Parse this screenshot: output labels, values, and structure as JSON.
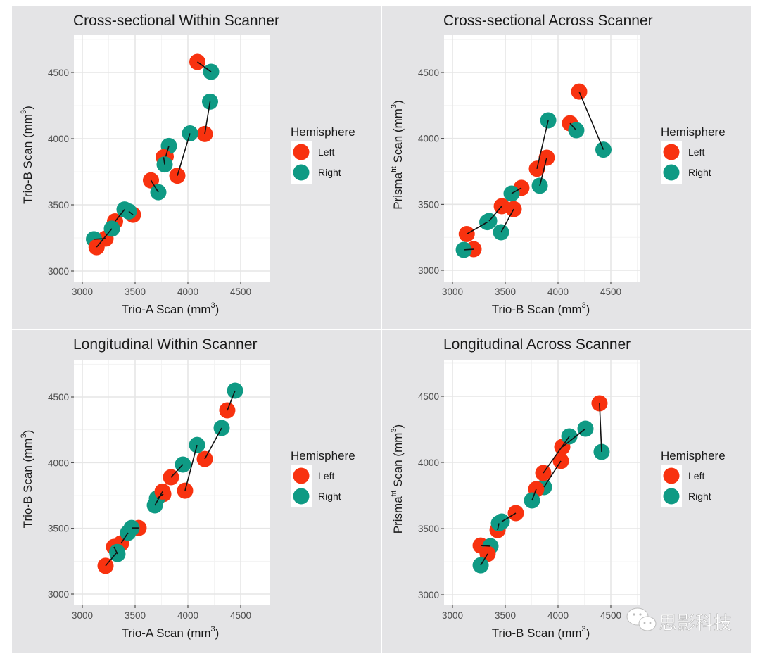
{
  "colors": {
    "left": "#F8320F",
    "right": "#0F9A84",
    "panel_bg": "#E4E4E6",
    "plot_bg": "#FFFFFF",
    "grid": "#E6E6E6",
    "line": "#111111"
  },
  "legend": {
    "title": "Hemisphere",
    "entries": [
      "Left",
      "Right"
    ]
  },
  "watermark": {
    "icon": "wechat-icon",
    "text": "思影科技"
  },
  "chart_data": [
    {
      "type": "scatter",
      "title": "Cross-sectional Within Scanner",
      "xlabel": "Trio-A Scan (mm",
      "xlabel_sup": "3",
      "ylabel": "Trio-B Scan (mm",
      "ylabel_sup": "3",
      "ylabel_prefix_sup": "",
      "xlim": [
        2920,
        4800
      ],
      "ylim": [
        2920,
        4780
      ],
      "xticks": [
        3000,
        3500,
        4000,
        4500
      ],
      "yticks": [
        3000,
        3500,
        4000,
        4500
      ],
      "grid": true,
      "legend_position": "right",
      "pairs": [
        {
          "left": [
            4090,
            4580
          ],
          "right": [
            4220,
            4505
          ]
        },
        {
          "left": [
            4160,
            4035
          ],
          "right": [
            4210,
            4280
          ]
        },
        {
          "left": [
            3900,
            3720
          ],
          "right": [
            4020,
            4040
          ]
        },
        {
          "left": [
            3790,
            3865
          ],
          "right": [
            3820,
            3945
          ]
        },
        {
          "left": [
            3770,
            3860
          ],
          "right": [
            3780,
            3805
          ]
        },
        {
          "left": [
            3650,
            3685
          ],
          "right": [
            3720,
            3595
          ]
        },
        {
          "left": [
            3480,
            3425
          ],
          "right": [
            3440,
            3450
          ]
        },
        {
          "left": [
            3310,
            3375
          ],
          "right": [
            3400,
            3465
          ]
        },
        {
          "left": [
            3220,
            3245
          ],
          "right": [
            3110,
            3240
          ]
        },
        {
          "left": [
            3135,
            3180
          ],
          "right": [
            3280,
            3320
          ]
        }
      ]
    },
    {
      "type": "scatter",
      "title": "Cross-sectional Across Scanner",
      "xlabel": "Trio-B Scan (mm",
      "xlabel_sup": "3",
      "ylabel": "Prisma",
      "ylabel_prefix_sup": "fit",
      "ylabel_rest": " Scan (mm",
      "ylabel_sup": "3",
      "xlim": [
        2920,
        4800
      ],
      "ylim": [
        2920,
        4780
      ],
      "xticks": [
        3000,
        3500,
        4000,
        4500
      ],
      "yticks": [
        3000,
        3500,
        4000,
        4500
      ],
      "grid": true,
      "legend_position": "right",
      "pairs": [
        {
          "left": [
            4200,
            4355
          ],
          "right": [
            4430,
            3915
          ]
        },
        {
          "left": [
            4113,
            4115
          ],
          "right": [
            4173,
            4062
          ]
        },
        {
          "left": [
            3800,
            3770
          ],
          "right": [
            3907,
            4137
          ]
        },
        {
          "left": [
            3893,
            3854
          ],
          "right": [
            3827,
            3641
          ]
        },
        {
          "left": [
            3653,
            3625
          ],
          "right": [
            3560,
            3582
          ]
        },
        {
          "left": [
            3467,
            3486
          ],
          "right": [
            3347,
            3374
          ]
        },
        {
          "left": [
            3580,
            3464
          ],
          "right": [
            3460,
            3288
          ]
        },
        {
          "left": [
            3135,
            3275
          ],
          "right": [
            3330,
            3365
          ]
        },
        {
          "left": [
            3200,
            3160
          ],
          "right": [
            3107,
            3155
          ]
        }
      ]
    },
    {
      "type": "scatter",
      "title": "Longitudinal Within Scanner",
      "xlabel": "Trio-A Scan (mm",
      "xlabel_sup": "3",
      "ylabel": "Trio-B Scan (mm",
      "ylabel_sup": "3",
      "ylabel_prefix_sup": "",
      "xlim": [
        2920,
        4800
      ],
      "ylim": [
        2920,
        4780
      ],
      "xticks": [
        3000,
        3500,
        4000,
        4500
      ],
      "yticks": [
        3000,
        3500,
        4000,
        4500
      ],
      "grid": true,
      "legend_position": "right",
      "pairs": [
        {
          "left": [
            4373,
            4398
          ],
          "right": [
            4447,
            4548
          ]
        },
        {
          "left": [
            4160,
            4028
          ],
          "right": [
            4320,
            4264
          ]
        },
        {
          "left": [
            3973,
            3787
          ],
          "right": [
            4087,
            4135
          ]
        },
        {
          "left": [
            3840,
            3889
          ],
          "right": [
            3953,
            3986
          ]
        },
        {
          "left": [
            3767,
            3761
          ],
          "right": [
            3707,
            3728
          ]
        },
        {
          "left": [
            3760,
            3780
          ],
          "right": [
            3687,
            3675
          ]
        },
        {
          "left": [
            3533,
            3503
          ],
          "right": [
            3467,
            3503
          ]
        },
        {
          "left": [
            3367,
            3386
          ],
          "right": [
            3433,
            3466
          ]
        },
        {
          "left": [
            3300,
            3359
          ],
          "right": [
            3333,
            3305
          ]
        },
        {
          "left": [
            3220,
            3215
          ],
          "right": [
            3330,
            3320
          ]
        }
      ]
    },
    {
      "type": "scatter",
      "title": "Longitudinal Across Scanner",
      "xlabel": "Trio-B Scan (mm",
      "xlabel_sup": "3",
      "ylabel": "Prisma",
      "ylabel_prefix_sup": "fit",
      "ylabel_rest": " Scan (mm",
      "ylabel_sup": "3",
      "xlim": [
        2920,
        4800
      ],
      "ylim": [
        2920,
        4780
      ],
      "xticks": [
        3000,
        3500,
        4000,
        4500
      ],
      "yticks": [
        3000,
        3500,
        4000,
        4500
      ],
      "grid": true,
      "legend_position": "right",
      "pairs": [
        {
          "left": [
            4393,
            4447
          ],
          "right": [
            4413,
            4080
          ]
        },
        {
          "left": [
            4040,
            4117
          ],
          "right": [
            4260,
            4255
          ]
        },
        {
          "left": [
            4027,
            4011
          ],
          "right": [
            3867,
            3814
          ]
        },
        {
          "left": [
            3860,
            3920
          ],
          "right": [
            4107,
            4197
          ]
        },
        {
          "left": [
            3793,
            3798
          ],
          "right": [
            3753,
            3713
          ]
        },
        {
          "left": [
            3600,
            3617
          ],
          "right": [
            3467,
            3553
          ]
        },
        {
          "left": [
            3427,
            3489
          ],
          "right": [
            3440,
            3540
          ]
        },
        {
          "left": [
            3267,
            3372
          ],
          "right": [
            3360,
            3367
          ]
        },
        {
          "left": [
            3333,
            3309
          ],
          "right": [
            3267,
            3223
          ]
        }
      ]
    }
  ]
}
